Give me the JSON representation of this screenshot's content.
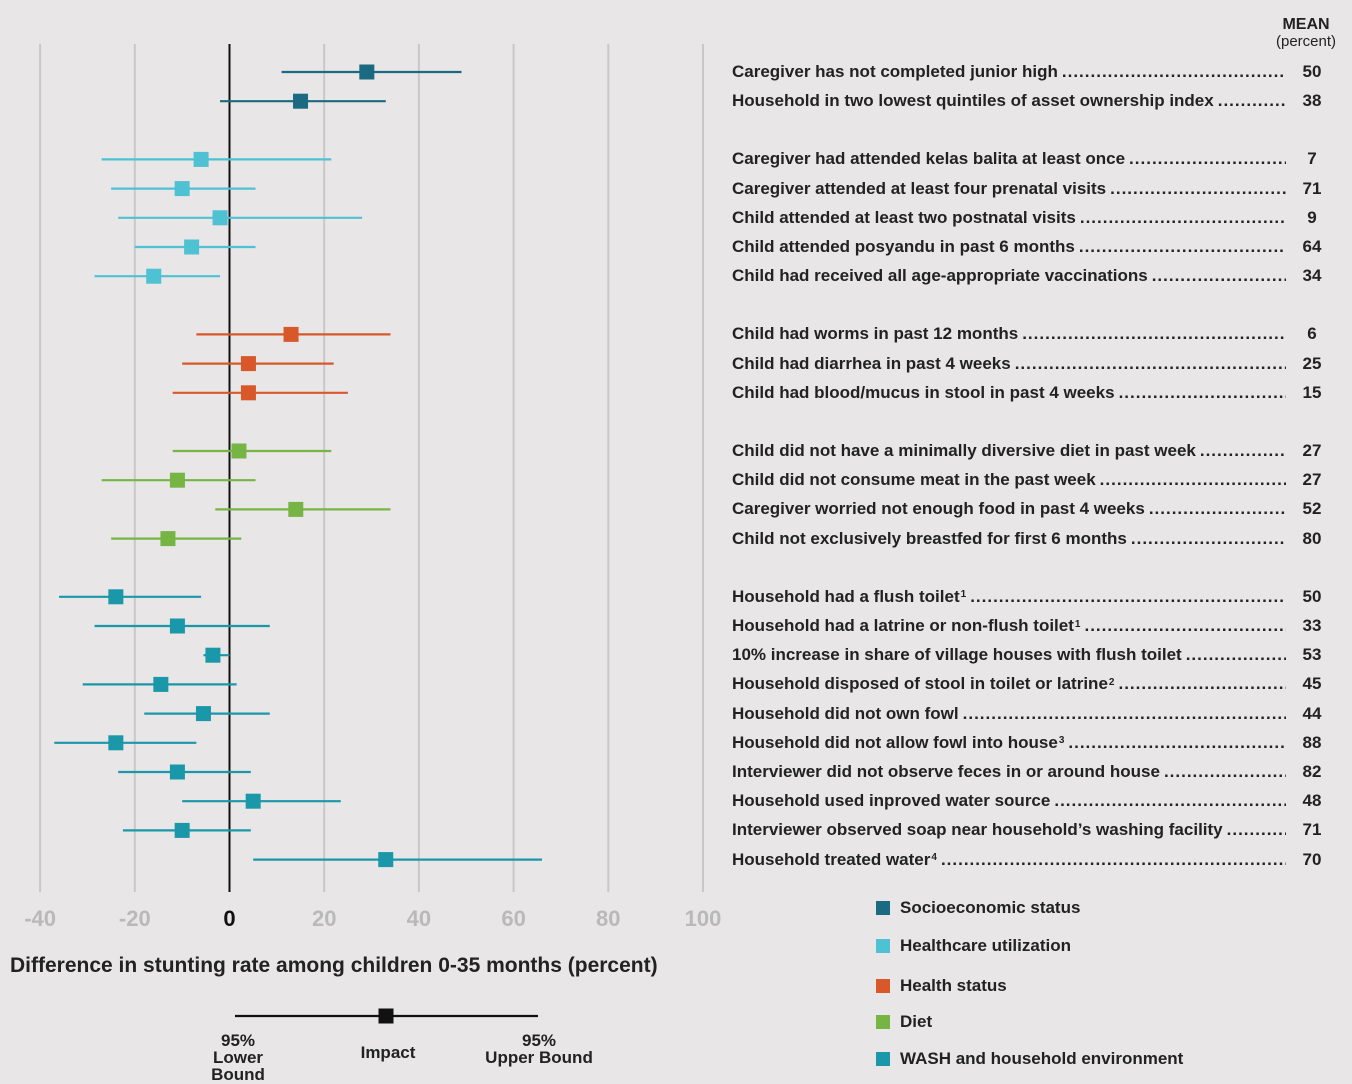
{
  "chart_data": {
    "type": "forest-plot",
    "xlabel": "Difference in stunting rate among children 0-35 months (percent)",
    "xlim": [
      -40,
      100
    ],
    "xticks": [
      "-40",
      "-20",
      "0",
      "20",
      "40",
      "60",
      "80",
      "100"
    ],
    "grid": true,
    "mean_header": "MEAN",
    "mean_unit": "(percent)",
    "groups": [
      {
        "name": "Socioeconomic status",
        "color": "#1b6a82",
        "rows": [
          {
            "label": "Caregiver has not completed junior high",
            "sup": "",
            "mean": "50",
            "impact": 29,
            "lower": 11,
            "upper": 49
          },
          {
            "label": "Household in two lowest quintiles of asset ownership index",
            "sup": "",
            "mean": "38",
            "impact": 15,
            "lower": -2,
            "upper": 33
          }
        ]
      },
      {
        "name": "Healthcare utilization",
        "color": "#4ec1d3",
        "rows": [
          {
            "label": "Caregiver had attended kelas balita at least once",
            "sup": "",
            "mean": "7",
            "impact": -6,
            "lower": -27,
            "upper": 21.5
          },
          {
            "label": "Caregiver attended at least four prenatal visits",
            "sup": "",
            "mean": "71",
            "impact": -10,
            "lower": -25,
            "upper": 5.5
          },
          {
            "label": "Child attended at least two postnatal visits",
            "sup": "",
            "mean": "9",
            "impact": -2,
            "lower": -23.5,
            "upper": 28
          },
          {
            "label": "Child attended posyandu in past 6 months",
            "sup": "",
            "mean": "64",
            "impact": -8,
            "lower": -20,
            "upper": 5.5
          },
          {
            "label": "Child had received all age-appropriate vaccinations",
            "sup": "",
            "mean": "34",
            "impact": -16,
            "lower": -28.5,
            "upper": -2
          }
        ]
      },
      {
        "name": "Health status",
        "color": "#d8582a",
        "rows": [
          {
            "label": "Child had worms in past 12 months",
            "sup": "",
            "mean": "6",
            "impact": 13,
            "lower": -7,
            "upper": 34
          },
          {
            "label": "Child had diarrhea in past 4 weeks",
            "sup": "",
            "mean": "25",
            "impact": 4,
            "lower": -10,
            "upper": 22
          },
          {
            "label": "Child had blood/mucus in stool in past 4 weeks",
            "sup": "",
            "mean": "15",
            "impact": 4,
            "lower": -12,
            "upper": 25
          }
        ]
      },
      {
        "name": "Diet",
        "color": "#76b543",
        "rows": [
          {
            "label": "Child did not have a minimally diversive diet in past week",
            "sup": "",
            "mean": "27",
            "impact": 2,
            "lower": -12,
            "upper": 21.5
          },
          {
            "label": "Child did not consume meat in the past week",
            "sup": "",
            "mean": "27",
            "impact": -11,
            "lower": -27,
            "upper": 5.5
          },
          {
            "label": "Caregiver worried not enough food in past 4 weeks",
            "sup": "",
            "mean": "52",
            "impact": 14,
            "lower": -3,
            "upper": 34
          },
          {
            "label": "Child not exclusively breastfed for first 6 months",
            "sup": "",
            "mean": "80",
            "impact": -13,
            "lower": -25,
            "upper": 2.5
          }
        ]
      },
      {
        "name": "WASH and household environment",
        "color": "#1a97a8",
        "rows": [
          {
            "label": "Household had a flush toilet",
            "sup": "1",
            "mean": "50",
            "impact": -24,
            "lower": -36,
            "upper": -6
          },
          {
            "label": "Household had a latrine or non-flush toilet",
            "sup": "1",
            "mean": "33",
            "impact": -11,
            "lower": -28.5,
            "upper": 8.5
          },
          {
            "label": "10% increase in share of village houses with flush toilet",
            "sup": "",
            "mean": "53",
            "impact": -3.5,
            "lower": -5.5,
            "upper": 0
          },
          {
            "label": "Household disposed of stool in toilet or latrine",
            "sup": "2",
            "mean": "45",
            "impact": -14.5,
            "lower": -31,
            "upper": 1.5
          },
          {
            "label": "Household did not own fowl",
            "sup": "",
            "mean": "44",
            "impact": -5.5,
            "lower": -18,
            "upper": 8.5
          },
          {
            "label": "Household did not allow fowl into house",
            "sup": "3",
            "mean": "88",
            "impact": -24,
            "lower": -37,
            "upper": -7
          },
          {
            "label": "Interviewer did not observe feces in or around house",
            "sup": "",
            "mean": "82",
            "impact": -11,
            "lower": -23.5,
            "upper": 4.5
          },
          {
            "label": "Household used inproved water source",
            "sup": "",
            "mean": "48",
            "impact": 5,
            "lower": -10,
            "upper": 23.5
          },
          {
            "label": "Interviewer observed soap near household’s washing facility",
            "sup": "",
            "mean": "71",
            "impact": -10,
            "lower": -22.5,
            "upper": 4.5
          },
          {
            "label": "Household treated water",
            "sup": "4",
            "mean": "70",
            "impact": 33,
            "lower": 5,
            "upper": 66
          }
        ]
      }
    ],
    "key": {
      "lower_label": [
        "95%",
        "Lower Bound"
      ],
      "impact_label": "Impact",
      "upper_label": [
        "95%",
        "Upper Bound"
      ]
    },
    "legend_placement": "bottom-right"
  }
}
